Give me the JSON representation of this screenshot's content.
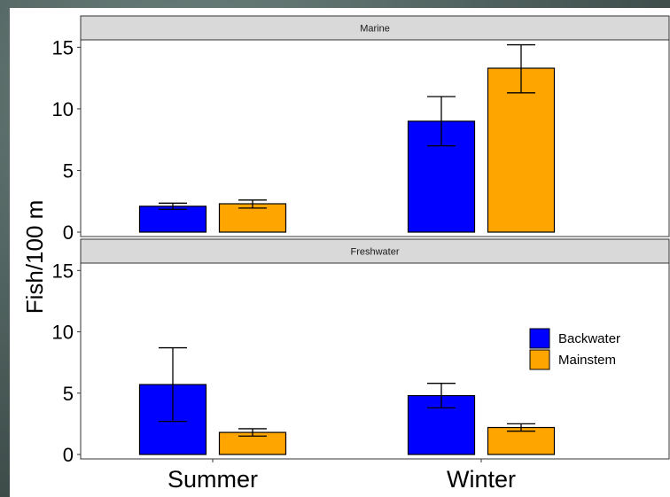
{
  "chart_data": {
    "type": "bar",
    "ylabel": "Fish/100 m",
    "xlabel": "",
    "categories": [
      "Summer",
      "Winter"
    ],
    "ylim": [
      0,
      15.6
    ],
    "yticks": [
      0,
      5,
      10,
      15
    ],
    "grid": false,
    "legend_position": "inside-right of lower panel",
    "facets": [
      {
        "label": "Marine",
        "series": [
          {
            "name": "Backwater",
            "color": "#0000ff",
            "values": [
              2.1,
              9.0
            ],
            "err_low": [
              1.85,
              7.0
            ],
            "err_high": [
              2.35,
              11.0
            ]
          },
          {
            "name": "Mainstem",
            "color": "#ffa500",
            "values": [
              2.3,
              13.3
            ],
            "err_low": [
              1.95,
              11.3
            ],
            "err_high": [
              2.6,
              15.2
            ]
          }
        ]
      },
      {
        "label": "Freshwater",
        "series": [
          {
            "name": "Backwater",
            "color": "#0000ff",
            "values": [
              5.7,
              4.8
            ],
            "err_low": [
              2.7,
              3.8
            ],
            "err_high": [
              8.7,
              5.8
            ]
          },
          {
            "name": "Mainstem",
            "color": "#ffa500",
            "values": [
              1.8,
              2.2
            ],
            "err_low": [
              1.5,
              1.9
            ],
            "err_high": [
              2.1,
              2.5
            ]
          }
        ]
      }
    ],
    "legend": [
      {
        "name": "Backwater",
        "color": "#0000ff"
      },
      {
        "name": "Mainstem",
        "color": "#ffa500"
      }
    ]
  }
}
